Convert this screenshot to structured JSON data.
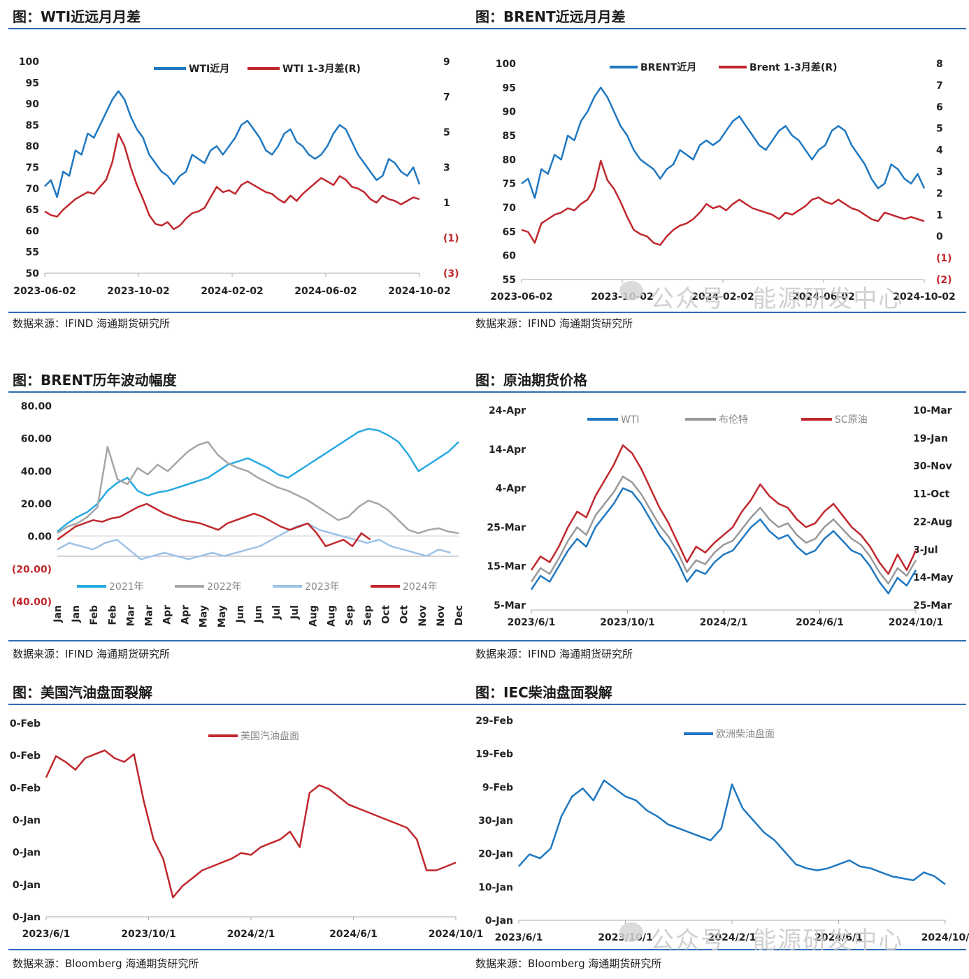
{
  "charts": [
    {
      "id": "wti",
      "title": "图：WTI近远月月差",
      "source": "数据来源：IFIND   海通期货研究所",
      "chart_data": {
        "type": "line",
        "dual_axis": true,
        "x_ticks": [
          "2023-06-02",
          "2023-10-02",
          "2024-02-02",
          "2024-06-02",
          "2024-10-02"
        ],
        "y_left": {
          "min": 50,
          "max": 100,
          "ticks": [
            "50",
            "55",
            "60",
            "65",
            "70",
            "75",
            "80",
            "85",
            "90",
            "95",
            "100"
          ]
        },
        "y_right": {
          "min": -3,
          "max": 9,
          "ticks": [
            "(3)",
            "(1)",
            "1",
            "3",
            "5",
            "7",
            "9"
          ]
        },
        "legend": "top-center",
        "series": [
          {
            "name": "WTI近月",
            "axis": "left",
            "color": "#1f78c1",
            "values": [
              70.5,
              72,
              68,
              74,
              73,
              79,
              78,
              83,
              82,
              85,
              88,
              91,
              93,
              91,
              87,
              84,
              82,
              78,
              76,
              74,
              73,
              71,
              73,
              74,
              78,
              77,
              76,
              79,
              80,
              78,
              80,
              82,
              85,
              86,
              84,
              82,
              79,
              78,
              80,
              83,
              84,
              81,
              80,
              78,
              77,
              78,
              80,
              83,
              85,
              84,
              81,
              78,
              76,
              74,
              72,
              73,
              77,
              76,
              74,
              73,
              75,
              71
            ]
          },
          {
            "name": "WTI 1-3月差(R)",
            "axis": "right",
            "color": "#c0272d",
            "values": [
              0.5,
              0.3,
              0.2,
              0.6,
              0.9,
              1.2,
              1.4,
              1.6,
              1.5,
              1.9,
              2.3,
              3.3,
              4.9,
              4.2,
              3.0,
              2.0,
              1.2,
              0.3,
              -0.2,
              -0.3,
              -0.1,
              -0.5,
              -0.3,
              0.1,
              0.4,
              0.5,
              0.7,
              1.3,
              1.9,
              1.6,
              1.7,
              1.5,
              2.0,
              2.2,
              2.0,
              1.8,
              1.6,
              1.5,
              1.2,
              1.0,
              1.4,
              1.1,
              1.5,
              1.8,
              2.1,
              2.4,
              2.2,
              2.0,
              2.5,
              2.3,
              1.9,
              1.8,
              1.6,
              1.2,
              1.0,
              1.4,
              1.2,
              1.1,
              0.9,
              1.1,
              1.3,
              1.2
            ]
          }
        ]
      }
    },
    {
      "id": "brent",
      "title": "图：BRENT近远月月差",
      "source": "数据来源：IFIND   海通期货研究所",
      "chart_data": {
        "type": "line",
        "dual_axis": true,
        "x_ticks": [
          "2023-06-02",
          "2023-10-02",
          "2024-02-02",
          "2024-06-02",
          "2024-10-02"
        ],
        "y_left": {
          "min": 55,
          "max": 100,
          "ticks": [
            "55",
            "60",
            "65",
            "70",
            "75",
            "80",
            "85",
            "90",
            "95",
            "100"
          ]
        },
        "y_right": {
          "min": -2,
          "max": 8,
          "ticks": [
            "(2)",
            "(1)",
            "0",
            "1",
            "2",
            "3",
            "4",
            "5",
            "6",
            "7",
            "8"
          ]
        },
        "legend": "top-center",
        "series": [
          {
            "name": "BRENT近月",
            "axis": "left",
            "color": "#1f78c1",
            "values": [
              75,
              76,
              72,
              78,
              77,
              81,
              80,
              85,
              84,
              88,
              90,
              93,
              95,
              93,
              90,
              87,
              85,
              82,
              80,
              79,
              78,
              76,
              78,
              79,
              82,
              81,
              80,
              83,
              84,
              83,
              84,
              86,
              88,
              89,
              87,
              85,
              83,
              82,
              84,
              86,
              87,
              85,
              84,
              82,
              80,
              82,
              83,
              86,
              87,
              86,
              83,
              81,
              79,
              76,
              74,
              75,
              79,
              78,
              76,
              75,
              77,
              74
            ]
          },
          {
            "name": "Brent 1-3月差(R)",
            "axis": "right",
            "color": "#c0272d",
            "values": [
              0.3,
              0.2,
              -0.3,
              0.6,
              0.8,
              1.0,
              1.1,
              1.3,
              1.2,
              1.5,
              1.7,
              2.2,
              3.5,
              2.6,
              2.2,
              1.6,
              0.9,
              0.3,
              0.1,
              0.0,
              -0.3,
              -0.4,
              0.0,
              0.3,
              0.5,
              0.6,
              0.8,
              1.1,
              1.5,
              1.3,
              1.4,
              1.2,
              1.5,
              1.7,
              1.5,
              1.3,
              1.2,
              1.1,
              1.0,
              0.8,
              1.1,
              1.0,
              1.2,
              1.4,
              1.7,
              1.8,
              1.6,
              1.5,
              1.7,
              1.5,
              1.3,
              1.2,
              1.0,
              0.8,
              0.7,
              1.1,
              1.0,
              0.9,
              0.8,
              0.9,
              0.8,
              0.7
            ]
          }
        ]
      }
    },
    {
      "id": "brent-vol",
      "title": "图：BRENT历年波动幅度",
      "source": "数据来源：IFIND   海通期货研究所",
      "chart_data": {
        "type": "line",
        "x_ticks": [
          "Jan",
          "Jan",
          "Feb",
          "Feb",
          "Mar",
          "Mar",
          "Apr",
          "Apr",
          "May",
          "May",
          "Jun",
          "Jun",
          "Jul",
          "Jul",
          "Aug",
          "Aug",
          "Sep",
          "Sep",
          "Oct",
          "Oct",
          "Nov",
          "Nov",
          "Dec"
        ],
        "y_left": {
          "min": -40,
          "max": 80,
          "ticks": [
            "(40.00)",
            "(20.00)",
            "0.00",
            "20.00",
            "40.00",
            "60.00",
            "80.00"
          ],
          "negative_color": "#c0272d"
        },
        "legend": "bottom",
        "series": [
          {
            "name": "2021年",
            "color": "#27a9e1",
            "values": [
              3,
              8,
              12,
              15,
              20,
              28,
              33,
              36,
              28,
              25,
              27,
              28,
              30,
              32,
              34,
              36,
              40,
              44,
              46,
              48,
              45,
              42,
              38,
              36,
              40,
              44,
              48,
              52,
              56,
              60,
              64,
              66,
              65,
              62,
              58,
              50,
              40,
              44,
              48,
              52,
              58
            ]
          },
          {
            "name": "2022年",
            "color": "#a6a6a6",
            "values": [
              2,
              6,
              8,
              12,
              18,
              55,
              35,
              32,
              42,
              38,
              44,
              40,
              46,
              52,
              56,
              58,
              50,
              45,
              42,
              40,
              36,
              33,
              30,
              28,
              25,
              22,
              18,
              14,
              10,
              12,
              18,
              22,
              20,
              16,
              10,
              4,
              2,
              4,
              5,
              3,
              2
            ]
          },
          {
            "name": "2023年",
            "color": "#9dc3e6",
            "values": [
              -8,
              -4,
              -6,
              -8,
              -4,
              -2,
              -8,
              -14,
              -12,
              -10,
              -12,
              -14,
              -12,
              -10,
              -12,
              -10,
              -8,
              -6,
              -2,
              2,
              6,
              8,
              4,
              2,
              0,
              -2,
              -4,
              -2,
              -6,
              -8,
              -10,
              -12,
              -8,
              -10
            ]
          },
          {
            "name": "2024年",
            "color": "#c0272d",
            "values": [
              -2,
              2,
              6,
              8,
              10,
              9,
              11,
              12,
              15,
              18,
              20,
              17,
              14,
              12,
              10,
              9,
              8,
              6,
              4,
              8,
              10,
              12,
              14,
              12,
              9,
              6,
              4,
              6,
              8,
              2,
              -6,
              -4,
              -2,
              -6,
              2,
              -2
            ]
          }
        ]
      }
    },
    {
      "id": "crude-futures",
      "title": "图：原油期货价格",
      "chart_data": {
        "type": "line",
        "dual_axis": true,
        "x_ticks": [
          "2023/6/1",
          "2023/10/1",
          "2024/2/1",
          "2024/6/1",
          "2024/10/1"
        ],
        "y_left": {
          "ticks": [
            "5-Mar",
            "15-Mar",
            "25-Mar",
            "4-Apr",
            "14-Apr",
            "24-Apr"
          ]
        },
        "y_right": {
          "ticks": [
            "25-Mar",
            "14-May",
            "3-Jul",
            "22-Aug",
            "11-Oct",
            "30-Nov",
            "19-Jan",
            "10-Mar"
          ]
        },
        "legend": "top-center",
        "series": [
          {
            "name": "WTI",
            "color": "#1f78c1",
            "values": [
              0.08,
              0.15,
              0.12,
              0.2,
              0.28,
              0.34,
              0.3,
              0.4,
              0.46,
              0.52,
              0.6,
              0.58,
              0.52,
              0.44,
              0.36,
              0.3,
              0.22,
              0.12,
              0.18,
              0.16,
              0.22,
              0.26,
              0.28,
              0.34,
              0.4,
              0.44,
              0.38,
              0.34,
              0.36,
              0.3,
              0.26,
              0.28,
              0.34,
              0.38,
              0.33,
              0.28,
              0.26,
              0.2,
              0.12,
              0.06,
              0.14,
              0.1,
              0.18
            ]
          },
          {
            "name": "布伦特",
            "color": "#999999",
            "values": [
              0.12,
              0.19,
              0.16,
              0.24,
              0.33,
              0.4,
              0.36,
              0.46,
              0.52,
              0.58,
              0.66,
              0.63,
              0.57,
              0.49,
              0.41,
              0.35,
              0.27,
              0.17,
              0.23,
              0.21,
              0.27,
              0.31,
              0.33,
              0.39,
              0.45,
              0.5,
              0.44,
              0.4,
              0.42,
              0.36,
              0.32,
              0.34,
              0.4,
              0.44,
              0.39,
              0.34,
              0.31,
              0.25,
              0.17,
              0.11,
              0.19,
              0.15,
              0.23
            ]
          },
          {
            "name": "SC原油",
            "color": "#c0272d",
            "values": [
              0.18,
              0.25,
              0.22,
              0.3,
              0.4,
              0.48,
              0.45,
              0.56,
              0.64,
              0.72,
              0.82,
              0.78,
              0.7,
              0.6,
              0.5,
              0.42,
              0.32,
              0.22,
              0.3,
              0.27,
              0.32,
              0.36,
              0.4,
              0.48,
              0.54,
              0.62,
              0.56,
              0.52,
              0.5,
              0.44,
              0.4,
              0.42,
              0.48,
              0.52,
              0.46,
              0.4,
              0.36,
              0.3,
              0.22,
              0.16,
              0.26,
              0.18,
              0.28
            ]
          }
        ]
      }
    },
    {
      "id": "us-gasoline",
      "title": "图：美国汽油盘面裂解",
      "source": "数据来源：Bloomberg   海通期货研究所",
      "chart_data": {
        "type": "line",
        "x_ticks": [
          "2023/6/1",
          "2023/10/1",
          "2024/2/1",
          "2024/6/1",
          "2024/10/1"
        ],
        "y_left": {
          "ticks": [
            "0-Jan",
            "0-Jan",
            "0-Jan",
            "0-Jan",
            "0-Feb",
            "0-Feb",
            "0-Feb"
          ]
        },
        "legend": "top-center",
        "series": [
          {
            "name": "美国汽油盘面",
            "color": "#c0272d",
            "values": [
              0.72,
              0.83,
              0.8,
              0.76,
              0.82,
              0.84,
              0.86,
              0.82,
              0.8,
              0.84,
              0.6,
              0.4,
              0.3,
              0.1,
              0.16,
              0.2,
              0.24,
              0.26,
              0.28,
              0.3,
              0.33,
              0.32,
              0.36,
              0.38,
              0.4,
              0.44,
              0.36,
              0.64,
              0.68,
              0.66,
              0.62,
              0.58,
              0.56,
              0.54,
              0.52,
              0.5,
              0.48,
              0.46,
              0.4,
              0.24,
              0.24,
              0.26,
              0.28
            ]
          }
        ]
      }
    },
    {
      "id": "iec-diesel",
      "title": "图：IEC柴油盘面裂解",
      "source": "数据来源：Bloomberg   海通期货研究所",
      "chart_data": {
        "type": "line",
        "x_ticks": [
          "2023/6/1",
          "2023/10/1",
          "2024/2/1",
          "2024/6/1",
          "2024/10/"
        ],
        "y_left": {
          "ticks": [
            "0-Jan",
            "10-Jan",
            "20-Jan",
            "30-Jan",
            "9-Feb",
            "19-Feb",
            "29-Feb"
          ]
        },
        "legend": "top-center",
        "series": [
          {
            "name": "欧洲柴油盘面",
            "color": "#1f78c1",
            "values": [
              0.27,
              0.33,
              0.31,
              0.36,
              0.52,
              0.62,
              0.66,
              0.6,
              0.7,
              0.66,
              0.62,
              0.6,
              0.55,
              0.52,
              0.48,
              0.46,
              0.44,
              0.42,
              0.4,
              0.46,
              0.68,
              0.56,
              0.5,
              0.44,
              0.4,
              0.34,
              0.28,
              0.26,
              0.25,
              0.26,
              0.28,
              0.3,
              0.27,
              0.26,
              0.24,
              0.22,
              0.21,
              0.2,
              0.24,
              0.22,
              0.18
            ]
          }
        ]
      }
    }
  ],
  "watermark": {
    "text": "公众号 · 能源研发中心"
  }
}
